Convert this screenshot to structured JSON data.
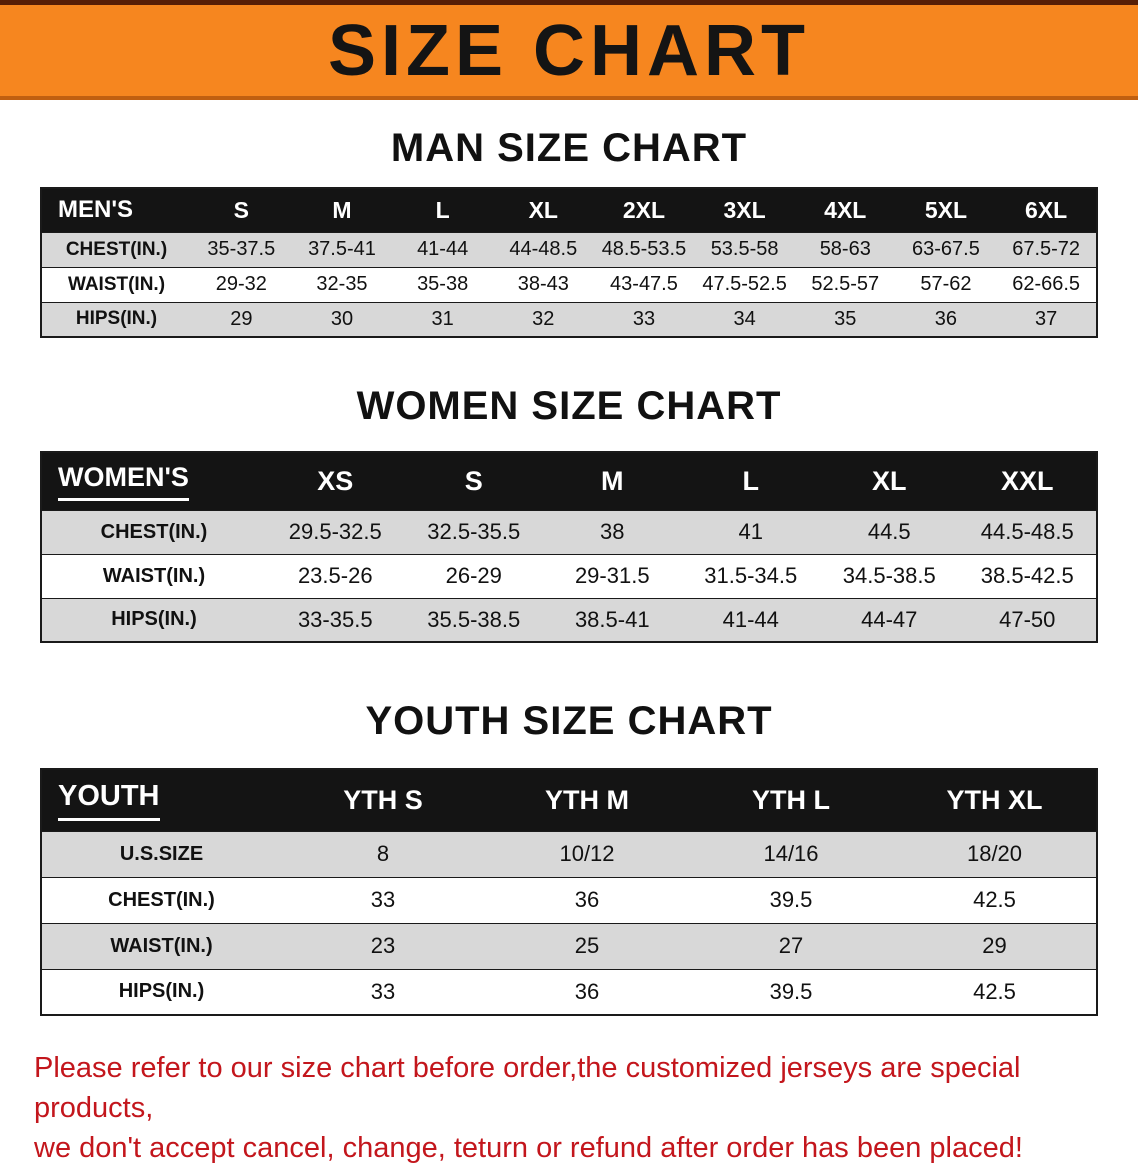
{
  "banner": {
    "title": "SIZE CHART",
    "bg_color": "#F6861F"
  },
  "colors": {
    "table_header_bg": "#141414",
    "row_alt_gray": "#D8D8D8",
    "note_red": "#C3161C"
  },
  "sections": [
    {
      "heading": "MAN SIZE CHART",
      "table": {
        "header": [
          "MEN'S",
          "S",
          "M",
          "L",
          "XL",
          "2XL",
          "3XL",
          "4XL",
          "5XL",
          "6XL"
        ],
        "rows": [
          {
            "label": "CHEST(IN.)",
            "values": [
              "35-37.5",
              "37.5-41",
              "41-44",
              "44-48.5",
              "48.5-53.5",
              "53.5-58",
              "58-63",
              "63-67.5",
              "67.5-72"
            ]
          },
          {
            "label": "WAIST(IN.)",
            "values": [
              "29-32",
              "32-35",
              "35-38",
              "38-43",
              "43-47.5",
              "47.5-52.5",
              "52.5-57",
              "57-62",
              "62-66.5"
            ]
          },
          {
            "label": "HIPS(IN.)",
            "values": [
              "29",
              "30",
              "31",
              "32",
              "33",
              "34",
              "35",
              "36",
              "37"
            ]
          }
        ]
      }
    },
    {
      "heading": "WOMEN SIZE CHART",
      "table": {
        "header": [
          "WOMEN'S",
          "XS",
          "S",
          "M",
          "L",
          "XL",
          "XXL"
        ],
        "rows": [
          {
            "label": "CHEST(IN.)",
            "values": [
              "29.5-32.5",
              "32.5-35.5",
              "38",
              "41",
              "44.5",
              "44.5-48.5"
            ]
          },
          {
            "label": "WAIST(IN.)",
            "values": [
              "23.5-26",
              "26-29",
              "29-31.5",
              "31.5-34.5",
              "34.5-38.5",
              "38.5-42.5"
            ]
          },
          {
            "label": "HIPS(IN.)",
            "values": [
              "33-35.5",
              "35.5-38.5",
              "38.5-41",
              "41-44",
              "44-47",
              "47-50"
            ]
          }
        ]
      }
    },
    {
      "heading": "YOUTH SIZE CHART",
      "table": {
        "header": [
          "YOUTH",
          "YTH S",
          "YTH M",
          "YTH L",
          "YTH XL"
        ],
        "rows": [
          {
            "label": "U.S.SIZE",
            "values": [
              "8",
              "10/12",
              "14/16",
              "18/20"
            ]
          },
          {
            "label": "CHEST(IN.)",
            "values": [
              "33",
              "36",
              "39.5",
              "42.5"
            ]
          },
          {
            "label": "WAIST(IN.)",
            "values": [
              "23",
              "25",
              "27",
              "29"
            ]
          },
          {
            "label": "HIPS(IN.)",
            "values": [
              "33",
              "36",
              "39.5",
              "42.5"
            ]
          }
        ]
      }
    }
  ],
  "footer": {
    "lines": [
      "Please refer to our size chart before order,the customized jerseys are special products,",
      "we don't accept cancel, change, teturn or refund after order has been placed!"
    ]
  }
}
